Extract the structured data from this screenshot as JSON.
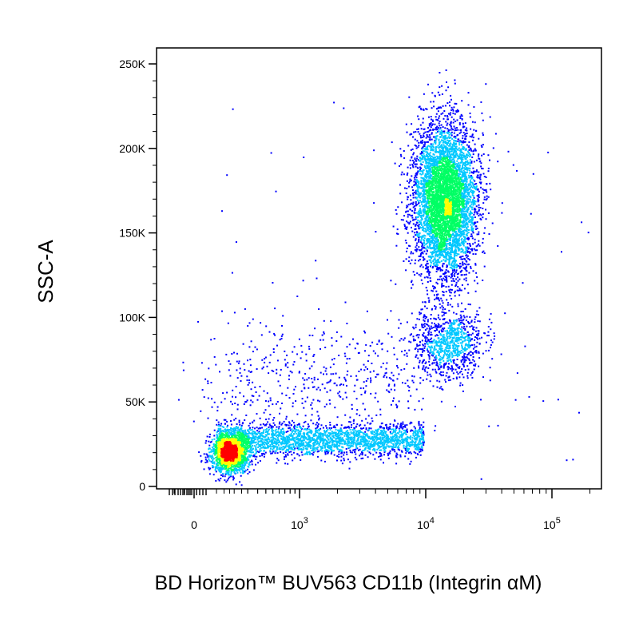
{
  "chart_data": {
    "type": "scatter",
    "style": "density pseudocolor",
    "title": "",
    "xlabel": "BD Horizon™ BUV563 CD11b (Integrin αM)",
    "ylabel": "SSC-A",
    "x_scale": "biexponential",
    "y_scale": "linear",
    "ylim": [
      0,
      262144
    ],
    "y_ticks": [
      {
        "value": 0,
        "label": "0"
      },
      {
        "value": 50000,
        "label": "50K"
      },
      {
        "value": 100000,
        "label": "100K"
      },
      {
        "value": 150000,
        "label": "150K"
      },
      {
        "value": 200000,
        "label": "200K"
      },
      {
        "value": 250000,
        "label": "250K"
      }
    ],
    "x_ticks": [
      {
        "value": 0,
        "base": "0",
        "exp": ""
      },
      {
        "value": 1000,
        "base": "10",
        "exp": "3"
      },
      {
        "value": 10000,
        "base": "10",
        "exp": "4"
      },
      {
        "value": 100000,
        "base": "10",
        "exp": "5"
      }
    ],
    "colors": {
      "low": "#0000ff",
      "mid_low": "#00c8ff",
      "mid": "#00ff64",
      "mid_high": "#ffff00",
      "high": "#ff0000"
    },
    "populations": [
      {
        "name": "",
        "x_center": 40,
        "y_center": 20000,
        "events": 1600
      },
      {
        "name": "",
        "x_center": 2000,
        "y_center": 28000,
        "events": 2400
      },
      {
        "name": "",
        "x_center": 14000,
        "y_center": 170000,
        "events": 5200
      },
      {
        "name": "",
        "x_center": 13000,
        "y_center": 85000,
        "events": 900
      }
    ]
  }
}
